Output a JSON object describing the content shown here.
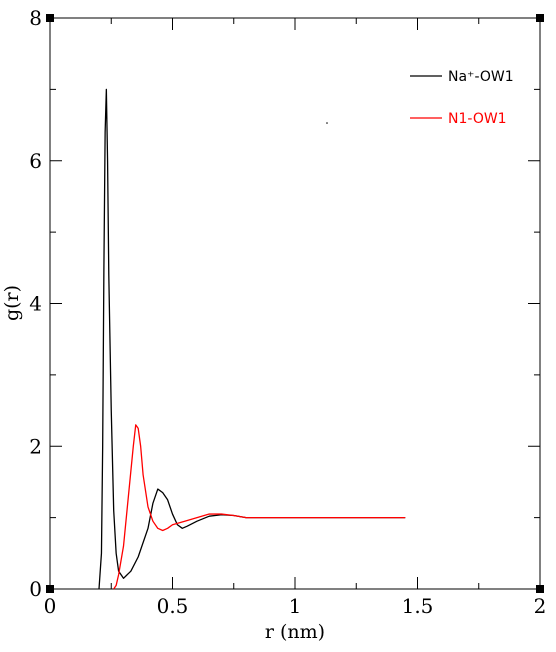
{
  "chart_data": {
    "type": "line",
    "xlabel": "r (nm)",
    "ylabel": "g(r)",
    "xlim": [
      0,
      2
    ],
    "ylim": [
      0,
      8
    ],
    "x_ticks": [
      "0",
      "0.5",
      "1",
      "1.5",
      "2"
    ],
    "y_ticks": [
      "0",
      "2",
      "4",
      "6",
      "8"
    ],
    "legend_position": "top-right",
    "grid": false,
    "series": [
      {
        "name": "Na⁺-OW1",
        "color": "#000000",
        "points": [
          [
            0.2,
            0.0
          ],
          [
            0.21,
            0.5
          ],
          [
            0.215,
            2.0
          ],
          [
            0.22,
            4.5
          ],
          [
            0.225,
            6.4
          ],
          [
            0.23,
            7.0
          ],
          [
            0.235,
            6.0
          ],
          [
            0.24,
            4.4
          ],
          [
            0.25,
            2.5
          ],
          [
            0.26,
            1.1
          ],
          [
            0.27,
            0.5
          ],
          [
            0.28,
            0.25
          ],
          [
            0.3,
            0.15
          ],
          [
            0.33,
            0.25
          ],
          [
            0.36,
            0.45
          ],
          [
            0.4,
            0.85
          ],
          [
            0.42,
            1.2
          ],
          [
            0.44,
            1.4
          ],
          [
            0.46,
            1.35
          ],
          [
            0.48,
            1.25
          ],
          [
            0.5,
            1.05
          ],
          [
            0.52,
            0.9
          ],
          [
            0.54,
            0.85
          ],
          [
            0.56,
            0.88
          ],
          [
            0.6,
            0.95
          ],
          [
            0.65,
            1.02
          ],
          [
            0.7,
            1.04
          ],
          [
            0.75,
            1.03
          ],
          [
            0.8,
            1.0
          ],
          [
            0.85,
            1.0
          ],
          [
            0.9,
            1.0
          ],
          [
            1.0,
            1.0
          ],
          [
            1.1,
            1.0
          ],
          [
            1.2,
            1.0
          ],
          [
            1.3,
            1.0
          ],
          [
            1.45,
            1.0
          ]
        ]
      },
      {
        "name": "N1-OW1",
        "color": "#ff0000",
        "points": [
          [
            0.26,
            0.0
          ],
          [
            0.27,
            0.05
          ],
          [
            0.28,
            0.2
          ],
          [
            0.3,
            0.6
          ],
          [
            0.32,
            1.3
          ],
          [
            0.34,
            2.0
          ],
          [
            0.35,
            2.3
          ],
          [
            0.36,
            2.25
          ],
          [
            0.37,
            2.0
          ],
          [
            0.38,
            1.6
          ],
          [
            0.4,
            1.15
          ],
          [
            0.42,
            0.95
          ],
          [
            0.44,
            0.85
          ],
          [
            0.46,
            0.82
          ],
          [
            0.48,
            0.85
          ],
          [
            0.5,
            0.9
          ],
          [
            0.55,
            0.95
          ],
          [
            0.6,
            1.0
          ],
          [
            0.65,
            1.05
          ],
          [
            0.7,
            1.05
          ],
          [
            0.75,
            1.03
          ],
          [
            0.8,
            1.0
          ],
          [
            0.9,
            1.0
          ],
          [
            1.0,
            1.0
          ],
          [
            1.1,
            1.0
          ],
          [
            1.2,
            1.0
          ],
          [
            1.3,
            1.0
          ],
          [
            1.45,
            1.0
          ]
        ]
      }
    ]
  }
}
